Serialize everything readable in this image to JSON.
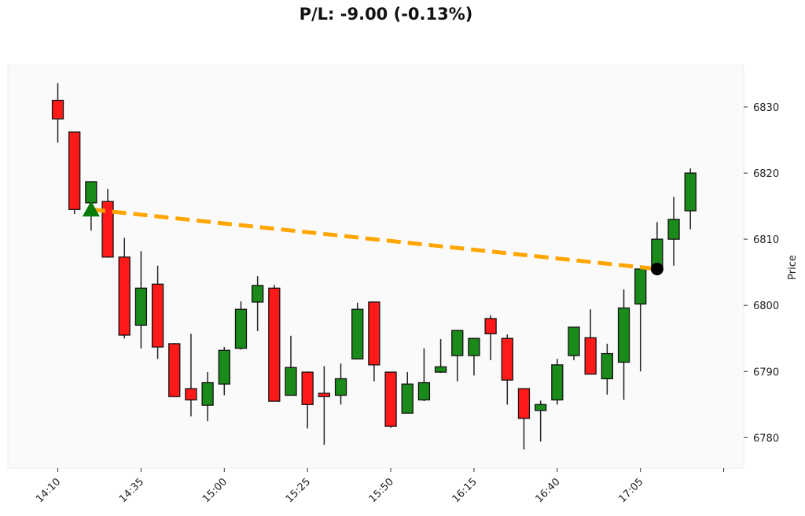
{
  "title": "P/L: -9.00 (-0.13%)",
  "chart_data": {
    "type": "candlestick",
    "title": "P/L: -9.00 (-0.13%)",
    "ylabel": "Price",
    "xlabel": "",
    "ylim": [
      6775.4,
      6836.3
    ],
    "xlim": [
      "13:55",
      "17:36"
    ],
    "yticks": [
      6780,
      6790,
      6800,
      6810,
      6820,
      6830
    ],
    "xticks": [
      "14:10",
      "14:35",
      "15:00",
      "15:25",
      "15:50",
      "16:15",
      "16:40",
      "17:05",
      "17:30"
    ],
    "xtick_labels": [
      "14:10",
      "14:35",
      "15:00",
      "15:25",
      "15:50",
      "16:15",
      "16:40",
      "17:05",
      ""
    ],
    "y_axis_side": "right",
    "grid": false,
    "colors": {
      "up": "#1a8a1a",
      "down": "#ff1a1a",
      "trade_line": "#ffa500",
      "entry_marker": "#0a7a0a",
      "exit_marker": "#000000",
      "background": "#fafafa"
    },
    "candles": [
      {
        "t": "14:10",
        "o": 6831.0,
        "h": 6833.6,
        "l": 6824.6,
        "c": 6828.2
      },
      {
        "t": "14:15",
        "o": 6826.2,
        "h": 6826.2,
        "l": 6813.8,
        "c": 6814.5
      },
      {
        "t": "14:20",
        "o": 6815.5,
        "h": 6818.7,
        "l": 6811.3,
        "c": 6818.7
      },
      {
        "t": "14:25",
        "o": 6815.7,
        "h": 6817.6,
        "l": 6807.2,
        "c": 6807.3
      },
      {
        "t": "14:30",
        "o": 6807.3,
        "h": 6810.2,
        "l": 6795.0,
        "c": 6795.5
      },
      {
        "t": "14:35",
        "o": 6797.0,
        "h": 6808.2,
        "l": 6793.5,
        "c": 6802.6
      },
      {
        "t": "14:40",
        "o": 6803.2,
        "h": 6806.0,
        "l": 6791.9,
        "c": 6793.7
      },
      {
        "t": "14:45",
        "o": 6794.2,
        "h": 6794.3,
        "l": 6786.2,
        "c": 6786.2
      },
      {
        "t": "14:50",
        "o": 6787.4,
        "h": 6795.7,
        "l": 6783.2,
        "c": 6785.7
      },
      {
        "t": "14:55",
        "o": 6784.9,
        "h": 6789.9,
        "l": 6782.5,
        "c": 6788.3
      },
      {
        "t": "15:00",
        "o": 6788.1,
        "h": 6793.7,
        "l": 6786.4,
        "c": 6793.2
      },
      {
        "t": "15:05",
        "o": 6793.5,
        "h": 6800.6,
        "l": 6793.3,
        "c": 6799.4
      },
      {
        "t": "15:10",
        "o": 6800.5,
        "h": 6804.4,
        "l": 6796.1,
        "c": 6803.0
      },
      {
        "t": "15:15",
        "o": 6802.6,
        "h": 6803.1,
        "l": 6785.5,
        "c": 6785.5
      },
      {
        "t": "15:20",
        "o": 6786.4,
        "h": 6795.4,
        "l": 6786.4,
        "c": 6790.6
      },
      {
        "t": "15:25",
        "o": 6789.9,
        "h": 6790.0,
        "l": 6781.4,
        "c": 6785.0
      },
      {
        "t": "15:30",
        "o": 6786.7,
        "h": 6790.8,
        "l": 6778.9,
        "c": 6786.2
      },
      {
        "t": "15:35",
        "o": 6786.4,
        "h": 6791.2,
        "l": 6785.0,
        "c": 6788.9
      },
      {
        "t": "15:40",
        "o": 6791.9,
        "h": 6800.4,
        "l": 6791.9,
        "c": 6799.4
      },
      {
        "t": "15:45",
        "o": 6800.5,
        "h": 6800.5,
        "l": 6788.5,
        "c": 6791.0
      },
      {
        "t": "15:50",
        "o": 6789.9,
        "h": 6789.9,
        "l": 6781.5,
        "c": 6781.7
      },
      {
        "t": "15:55",
        "o": 6783.7,
        "h": 6789.9,
        "l": 6783.7,
        "c": 6788.1
      },
      {
        "t": "16:00",
        "o": 6785.7,
        "h": 6793.5,
        "l": 6785.5,
        "c": 6788.3
      },
      {
        "t": "16:05",
        "o": 6789.9,
        "h": 6794.9,
        "l": 6789.8,
        "c": 6790.7
      },
      {
        "t": "16:10",
        "o": 6792.4,
        "h": 6796.2,
        "l": 6788.5,
        "c": 6796.2
      },
      {
        "t": "16:15",
        "o": 6792.4,
        "h": 6795.0,
        "l": 6789.4,
        "c": 6795.0
      },
      {
        "t": "16:20",
        "o": 6798.0,
        "h": 6798.5,
        "l": 6791.7,
        "c": 6795.7
      },
      {
        "t": "16:25",
        "o": 6795.0,
        "h": 6795.6,
        "l": 6785.0,
        "c": 6788.7
      },
      {
        "t": "16:30",
        "o": 6787.4,
        "h": 6787.4,
        "l": 6778.2,
        "c": 6782.9
      },
      {
        "t": "16:35",
        "o": 6784.1,
        "h": 6785.6,
        "l": 6779.4,
        "c": 6785.0
      },
      {
        "t": "16:40",
        "o": 6785.7,
        "h": 6791.9,
        "l": 6785.0,
        "c": 6791.0
      },
      {
        "t": "16:45",
        "o": 6792.4,
        "h": 6796.7,
        "l": 6791.7,
        "c": 6796.7
      },
      {
        "t": "16:50",
        "o": 6795.1,
        "h": 6799.4,
        "l": 6789.6,
        "c": 6789.6
      },
      {
        "t": "16:55",
        "o": 6788.9,
        "h": 6794.2,
        "l": 6786.5,
        "c": 6792.7
      },
      {
        "t": "17:00",
        "o": 6791.4,
        "h": 6802.4,
        "l": 6785.7,
        "c": 6799.6
      },
      {
        "t": "17:05",
        "o": 6800.2,
        "h": 6806.0,
        "l": 6790.0,
        "c": 6805.5
      },
      {
        "t": "17:10",
        "o": 6805.4,
        "h": 6812.6,
        "l": 6805.4,
        "c": 6810.0
      },
      {
        "t": "17:15",
        "o": 6810.0,
        "h": 6816.4,
        "l": 6806.0,
        "c": 6813.0
      },
      {
        "t": "17:20",
        "o": 6814.3,
        "h": 6820.7,
        "l": 6811.5,
        "c": 6820.0
      }
    ],
    "trade": {
      "entry": {
        "t": "14:20",
        "price": 6814.5,
        "marker": "triangle-up"
      },
      "exit": {
        "t": "17:10",
        "price": 6805.5,
        "marker": "circle"
      },
      "pl": -9.0,
      "pl_pct": -0.13
    }
  }
}
